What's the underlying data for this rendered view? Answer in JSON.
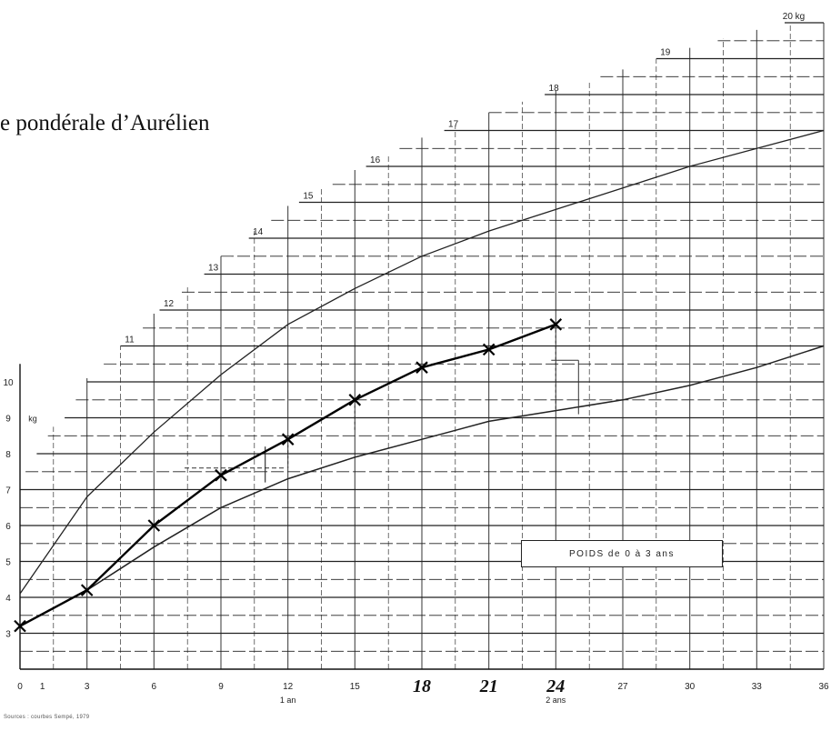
{
  "title": "e pondérale d’Aurélien",
  "source_note": "Sources : courbes Sempé, 1979",
  "chart_data": {
    "type": "line",
    "title": "e pondérale d’Aurélien",
    "box_label": "POIDS de 0 à 3 ans",
    "ylabel": "kg",
    "y_unit_label": "kg",
    "y_top_label": "20 kg",
    "xlim": [
      0,
      36
    ],
    "ylim": [
      2,
      20
    ],
    "x_ticks": [
      0,
      1,
      3,
      6,
      9,
      12,
      15,
      18,
      21,
      24,
      27,
      30,
      33,
      36
    ],
    "x_tick_labels": [
      "0",
      "1",
      "3",
      "6",
      "9",
      "12",
      "15",
      "18",
      "21",
      "24",
      "27",
      "30",
      "33",
      "36"
    ],
    "x_sub_labels": [
      {
        "x": 12,
        "text": "1 an"
      },
      {
        "x": 24,
        "text": "2 ans"
      }
    ],
    "handwritten_ticks": [
      {
        "x": 18,
        "text": "18"
      },
      {
        "x": 21,
        "text": "21"
      },
      {
        "x": 24,
        "text": "24"
      }
    ],
    "y_ticks": [
      3,
      4,
      5,
      6,
      7,
      8,
      9,
      10,
      11,
      12,
      13,
      14,
      15,
      16,
      17,
      18,
      19,
      20
    ],
    "y_tick_labels": [
      "3",
      "4",
      "5",
      "6",
      "7",
      "8",
      "9",
      "10",
      "11",
      "12",
      "13",
      "14",
      "15",
      "16",
      "17",
      "18",
      "19",
      "20 kg"
    ],
    "grid": true,
    "series": [
      {
        "role": "child",
        "x": [
          0,
          3,
          6,
          9,
          12,
          15,
          18,
          21,
          24
        ],
        "y": [
          3.2,
          4.2,
          6.0,
          7.4,
          8.4,
          9.5,
          10.4,
          10.9,
          11.6
        ]
      },
      {
        "role": "upper-reference",
        "x": [
          0,
          3,
          6,
          9,
          12,
          15,
          18,
          21,
          24,
          27,
          30,
          33,
          36
        ],
        "y": [
          4.1,
          6.8,
          8.6,
          10.2,
          11.6,
          12.6,
          13.5,
          14.2,
          14.8,
          15.4,
          16.0,
          16.5,
          17.0
        ]
      },
      {
        "role": "lower-reference",
        "x": [
          3,
          6,
          9,
          12,
          15,
          18,
          21,
          24,
          27,
          30,
          33,
          36
        ],
        "y": [
          4.2,
          5.4,
          6.5,
          7.3,
          7.9,
          8.4,
          8.9,
          9.2,
          9.5,
          9.9,
          10.4,
          11.0
        ]
      }
    ]
  }
}
